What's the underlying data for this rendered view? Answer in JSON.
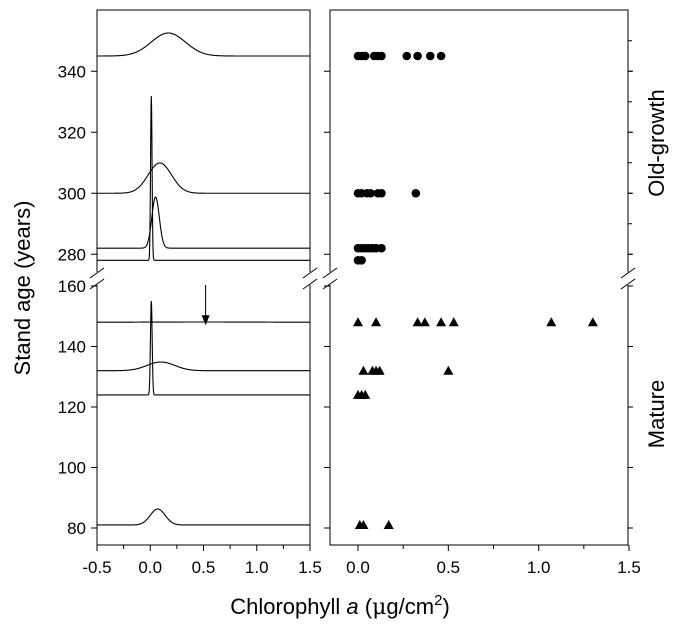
{
  "chart_data": [
    {
      "type": "line",
      "panel": "left",
      "description_of_series": "Stacked distribution curves of chlorophyll a, one per stand age",
      "x_ticks": [
        "-0.5",
        "0.0",
        "0.5",
        "1.0",
        "1.5"
      ],
      "x_tick_values": [
        -0.5,
        0.0,
        0.5,
        1.0,
        1.5
      ],
      "xlim": [
        -0.5,
        1.5
      ],
      "y_ticks_upper": [
        "280",
        "300",
        "320",
        "340"
      ],
      "y_ticks_lower": [
        "80",
        "100",
        "120",
        "140",
        "160"
      ],
      "ylim_upper": [
        275,
        358
      ],
      "ylim_lower": [
        75,
        162
      ],
      "axis_break": true,
      "ylabel": "Stand age (years)",
      "curves": [
        {
          "age": 345,
          "peak_x": 0.17,
          "width": 0.16,
          "height": 1.5
        },
        {
          "age": 300,
          "peak_x": 0.09,
          "width": 0.11,
          "height": 4.5
        },
        {
          "age": 282,
          "peak_x": 0.05,
          "width": 0.035,
          "height": 11
        },
        {
          "age": 278,
          "peak_x": 0.01,
          "width": 0.007,
          "height": 49
        },
        {
          "age": 148,
          "peak_x": 0.5,
          "width": 0.6,
          "height": 1.0
        },
        {
          "age": 132,
          "peak_x": 0.1,
          "width": 0.13,
          "height": 3.0
        },
        {
          "age": 124,
          "peak_x": 0.01,
          "width": 0.008,
          "height": 31
        },
        {
          "age": 81,
          "peak_x": 0.07,
          "width": 0.07,
          "height": 5.0
        }
      ],
      "annotation_arrow": {
        "x": 0.52,
        "age_from": 160,
        "age_to": 149
      }
    },
    {
      "type": "scatter",
      "panel": "right",
      "x_ticks": [
        "0.0",
        "0.5",
        "1.0",
        "1.5"
      ],
      "x_tick_values": [
        0.0,
        0.5,
        1.0,
        1.5
      ],
      "xlim": [
        -0.05,
        1.5
      ],
      "group_labels": {
        "upper": "Old-growth",
        "lower": "Mature"
      },
      "series": [
        {
          "marker": "circle",
          "group": "Old-growth",
          "points": [
            {
              "x": 0.0,
              "y": 345
            },
            {
              "x": 0.02,
              "y": 345
            },
            {
              "x": 0.04,
              "y": 345
            },
            {
              "x": 0.09,
              "y": 345
            },
            {
              "x": 0.11,
              "y": 345
            },
            {
              "x": 0.13,
              "y": 345
            },
            {
              "x": 0.27,
              "y": 345
            },
            {
              "x": 0.33,
              "y": 345
            },
            {
              "x": 0.4,
              "y": 345
            },
            {
              "x": 0.46,
              "y": 345
            },
            {
              "x": 0.0,
              "y": 300
            },
            {
              "x": 0.02,
              "y": 300
            },
            {
              "x": 0.05,
              "y": 300
            },
            {
              "x": 0.07,
              "y": 300
            },
            {
              "x": 0.11,
              "y": 300
            },
            {
              "x": 0.13,
              "y": 300
            },
            {
              "x": 0.32,
              "y": 300
            },
            {
              "x": 0.0,
              "y": 282
            },
            {
              "x": 0.02,
              "y": 282
            },
            {
              "x": 0.04,
              "y": 282
            },
            {
              "x": 0.06,
              "y": 282
            },
            {
              "x": 0.08,
              "y": 282
            },
            {
              "x": 0.1,
              "y": 282
            },
            {
              "x": 0.13,
              "y": 282
            },
            {
              "x": 0.0,
              "y": 278
            },
            {
              "x": 0.02,
              "y": 278
            }
          ]
        },
        {
          "marker": "triangle",
          "group": "Mature",
          "points": [
            {
              "x": 0.0,
              "y": 148
            },
            {
              "x": 0.1,
              "y": 148
            },
            {
              "x": 0.33,
              "y": 148
            },
            {
              "x": 0.37,
              "y": 148
            },
            {
              "x": 0.46,
              "y": 148
            },
            {
              "x": 0.53,
              "y": 148
            },
            {
              "x": 1.07,
              "y": 148
            },
            {
              "x": 1.3,
              "y": 148
            },
            {
              "x": 0.03,
              "y": 132
            },
            {
              "x": 0.08,
              "y": 132
            },
            {
              "x": 0.1,
              "y": 132
            },
            {
              "x": 0.12,
              "y": 132
            },
            {
              "x": 0.5,
              "y": 132
            },
            {
              "x": 0.0,
              "y": 124
            },
            {
              "x": 0.02,
              "y": 124
            },
            {
              "x": 0.04,
              "y": 124
            },
            {
              "x": 0.01,
              "y": 81
            },
            {
              "x": 0.03,
              "y": 81
            },
            {
              "x": 0.17,
              "y": 81
            }
          ]
        }
      ]
    }
  ],
  "xlabel_prefix": "Chlorophyll ",
  "xlabel_italic": "a",
  "xlabel_open": " (",
  "xlabel_mu": "μ",
  "xlabel_unit": "g/cm",
  "xlabel_sup": "2",
  "xlabel_close": ")"
}
